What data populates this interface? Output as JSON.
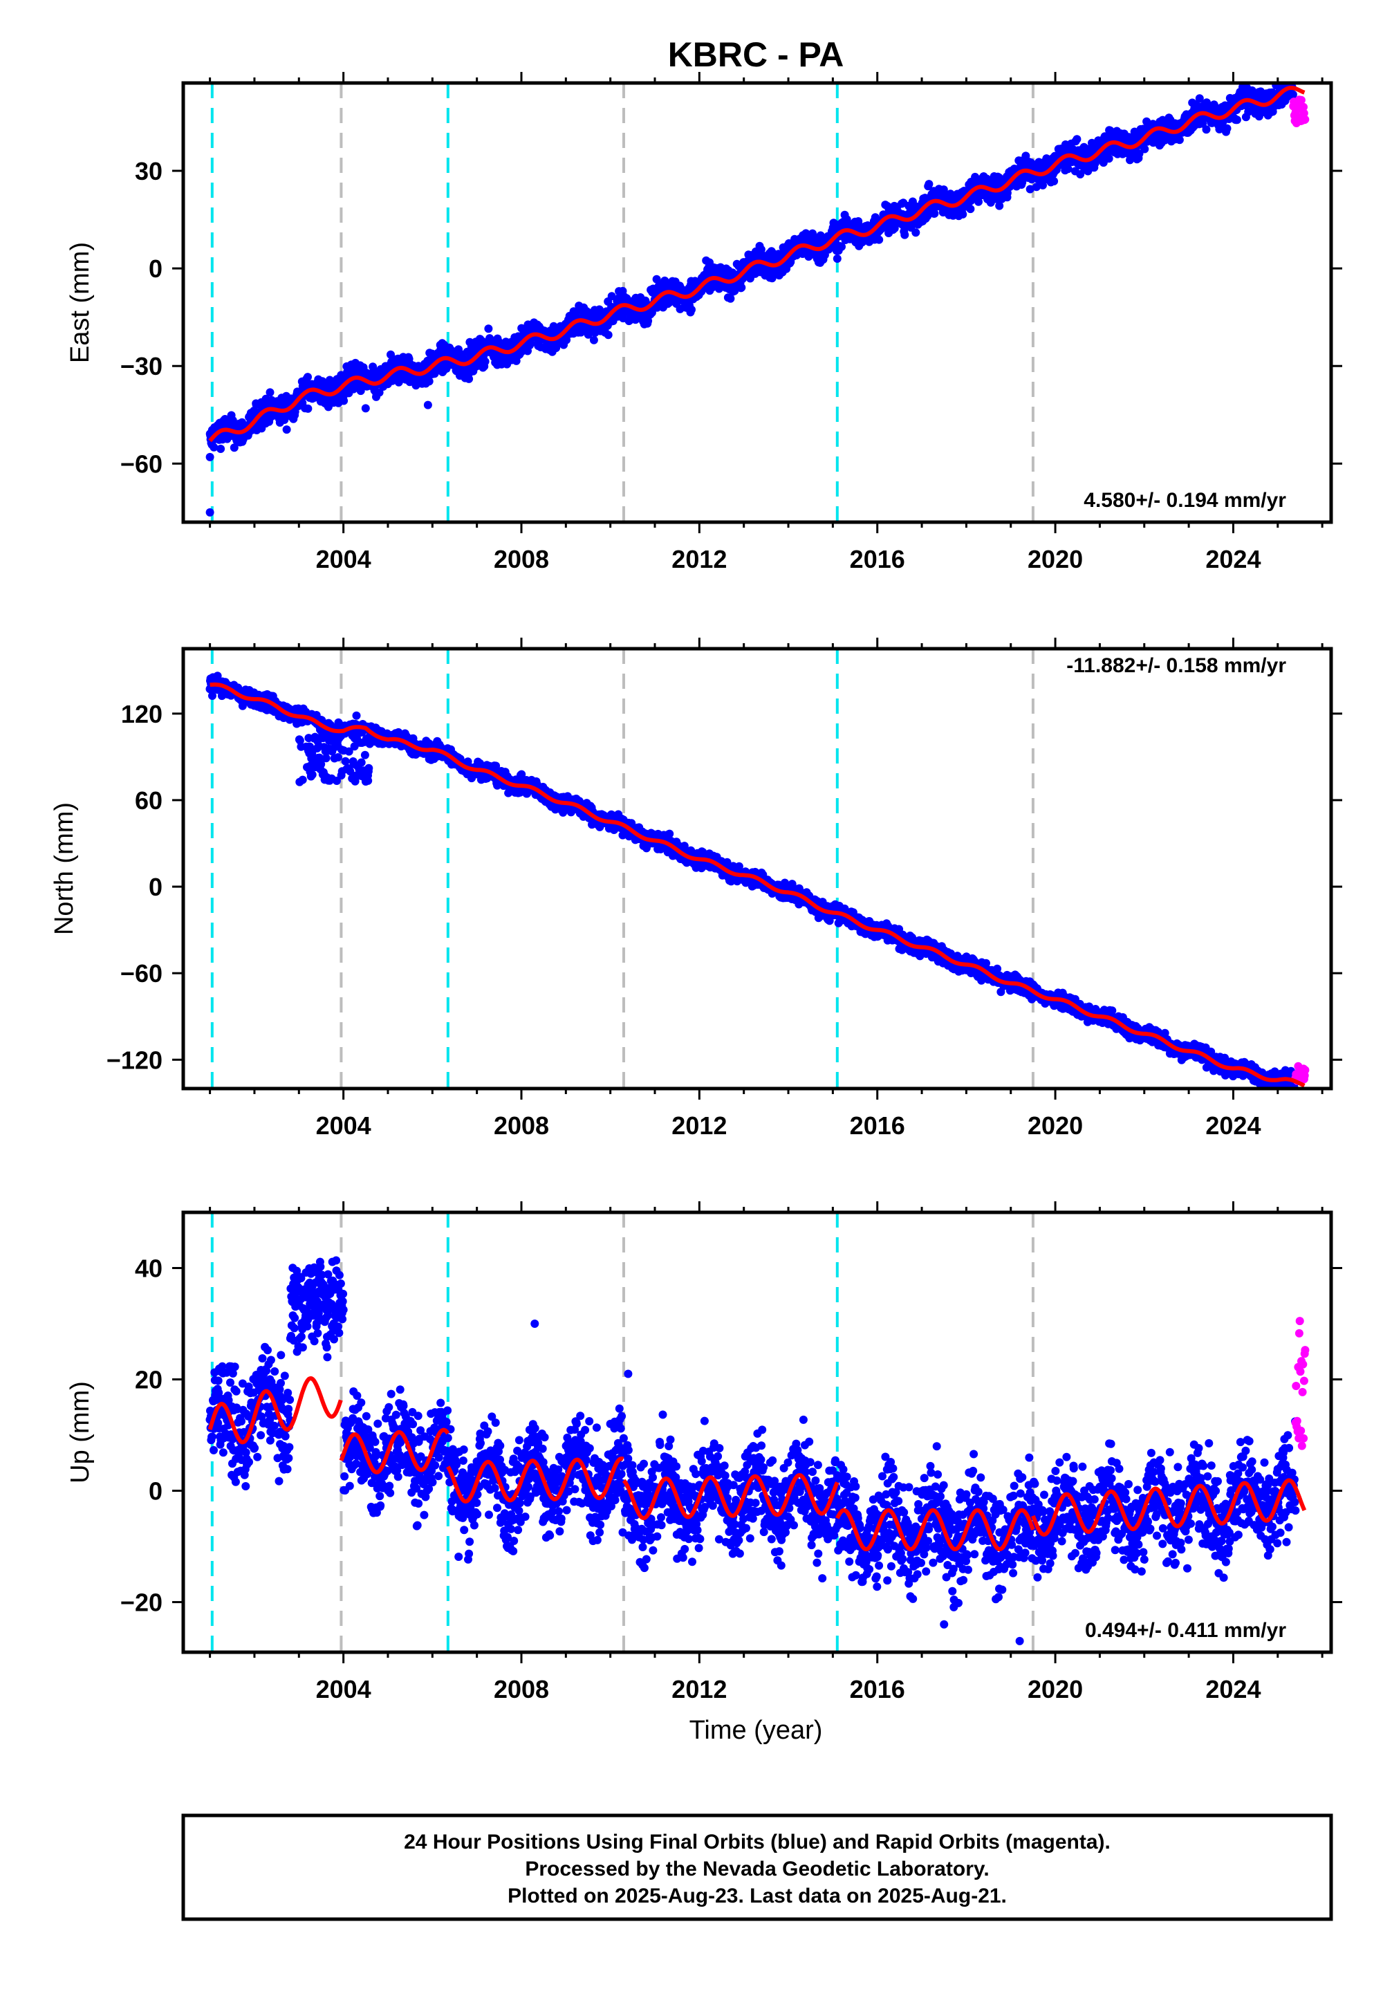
{
  "title": "KBRC - PA",
  "xlabel": "Time (year)",
  "colors": {
    "final": "#0000ff",
    "rapid": "#ff00ff",
    "model": "#ff0000",
    "equipment_change": "#00e5ee",
    "other_step": "#bdbdbd"
  },
  "footer": {
    "line1": "24 Hour Positions Using Final Orbits (blue) and Rapid Orbits (magenta).",
    "line2": "Processed by the Nevada Geodetic Laboratory.",
    "line3": "Plotted on 2025-Aug-23. Last data on 2025-Aug-21."
  },
  "chart_data": [
    {
      "type": "scatter",
      "component": "East",
      "ylabel": "East (mm)",
      "xlim": [
        2000.4,
        2026.2
      ],
      "ylim": [
        -78,
        57
      ],
      "xticks": [
        2004,
        2008,
        2012,
        2016,
        2020,
        2024
      ],
      "yticks": [
        -60,
        -30,
        0,
        30
      ],
      "rate_label": "4.580+/- 0.194 mm/yr",
      "rate_position": "bottom-right",
      "trend": {
        "t0": 2001.0,
        "y0": -51,
        "rate": 4.58
      },
      "model_series": [
        {
          "x": 2001.0,
          "y": -53
        },
        {
          "x": 2002.0,
          "y": -47
        },
        {
          "x": 2003.0,
          "y": -40
        },
        {
          "x": 2004.0,
          "y": -36
        },
        {
          "x": 2005.0,
          "y": -33
        },
        {
          "x": 2006.0,
          "y": -30
        },
        {
          "x": 2007.0,
          "y": -27
        },
        {
          "x": 2008.0,
          "y": -23
        },
        {
          "x": 2009.0,
          "y": -19
        },
        {
          "x": 2010.0,
          "y": -14
        },
        {
          "x": 2011.0,
          "y": -10
        },
        {
          "x": 2012.0,
          "y": -6
        },
        {
          "x": 2013.0,
          "y": -1
        },
        {
          "x": 2014.0,
          "y": 4
        },
        {
          "x": 2015.0,
          "y": 9
        },
        {
          "x": 2016.0,
          "y": 13
        },
        {
          "x": 2017.0,
          "y": 18
        },
        {
          "x": 2018.0,
          "y": 22
        },
        {
          "x": 2019.0,
          "y": 27
        },
        {
          "x": 2020.0,
          "y": 32
        },
        {
          "x": 2021.0,
          "y": 36
        },
        {
          "x": 2022.0,
          "y": 40
        },
        {
          "x": 2023.0,
          "y": 45
        },
        {
          "x": 2024.0,
          "y": 49
        },
        {
          "x": 2025.0,
          "y": 53
        },
        {
          "x": 2025.6,
          "y": 55
        }
      ],
      "scatter_amp": 3,
      "outliers": [
        {
          "x": 2001.0,
          "y": -75
        },
        {
          "x": 2001.0,
          "y": -58
        },
        {
          "x": 2005.9,
          "y": -42
        },
        {
          "x": 2004.5,
          "y": -43
        },
        {
          "x": 2015.1,
          "y": 3
        }
      ],
      "rapid": {
        "x0": 2025.35,
        "x1": 2025.62,
        "y_min": 44,
        "y_max": 52
      },
      "steps": [
        {
          "x": 2001.05,
          "kind": "equipment"
        },
        {
          "x": 2003.95,
          "kind": "other"
        },
        {
          "x": 2006.35,
          "kind": "equipment"
        },
        {
          "x": 2010.3,
          "kind": "other"
        },
        {
          "x": 2015.1,
          "kind": "equipment"
        },
        {
          "x": 2019.5,
          "kind": "other"
        }
      ]
    },
    {
      "type": "scatter",
      "component": "North",
      "ylabel": "North (mm)",
      "xlim": [
        2000.4,
        2026.2
      ],
      "ylim": [
        -140,
        165
      ],
      "xticks": [
        2004,
        2008,
        2012,
        2016,
        2020,
        2024
      ],
      "yticks": [
        -120,
        -60,
        0,
        60,
        120
      ],
      "rate_label": "-11.882+/- 0.158 mm/yr",
      "rate_position": "top-right",
      "model_series": [
        {
          "x": 2001.0,
          "y": 140
        },
        {
          "x": 2001.5,
          "y": 136
        },
        {
          "x": 2002.0,
          "y": 130
        },
        {
          "x": 2002.5,
          "y": 125
        },
        {
          "x": 2003.0,
          "y": 118
        },
        {
          "x": 2003.5,
          "y": 112
        },
        {
          "x": 2004.0,
          "y": 108
        },
        {
          "x": 2004.5,
          "y": 110
        },
        {
          "x": 2005.0,
          "y": 102
        },
        {
          "x": 2006.0,
          "y": 95
        },
        {
          "x": 2006.35,
          "y": 90
        },
        {
          "x": 2007.0,
          "y": 81
        },
        {
          "x": 2008.0,
          "y": 70
        },
        {
          "x": 2009.0,
          "y": 58
        },
        {
          "x": 2010.0,
          "y": 45
        },
        {
          "x": 2011.0,
          "y": 32
        },
        {
          "x": 2012.0,
          "y": 19
        },
        {
          "x": 2013.0,
          "y": 8
        },
        {
          "x": 2014.0,
          "y": -4
        },
        {
          "x": 2015.0,
          "y": -18
        },
        {
          "x": 2016.0,
          "y": -30
        },
        {
          "x": 2017.0,
          "y": -42
        },
        {
          "x": 2018.0,
          "y": -54
        },
        {
          "x": 2019.0,
          "y": -67
        },
        {
          "x": 2020.0,
          "y": -78
        },
        {
          "x": 2021.0,
          "y": -90
        },
        {
          "x": 2022.0,
          "y": -102
        },
        {
          "x": 2023.0,
          "y": -114
        },
        {
          "x": 2024.0,
          "y": -126
        },
        {
          "x": 2025.0,
          "y": -134
        },
        {
          "x": 2025.6,
          "y": -137
        }
      ],
      "scatter_amp": 4,
      "dip": {
        "x0": 2003.0,
        "x1": 2004.6,
        "y_low": 72,
        "y_high": 105
      },
      "rapid": {
        "x0": 2025.4,
        "x1": 2025.62,
        "y_min": -135,
        "y_max": -124
      },
      "steps": [
        {
          "x": 2001.05,
          "kind": "equipment"
        },
        {
          "x": 2003.95,
          "kind": "other"
        },
        {
          "x": 2006.35,
          "kind": "equipment"
        },
        {
          "x": 2010.3,
          "kind": "other"
        },
        {
          "x": 2015.1,
          "kind": "equipment"
        },
        {
          "x": 2019.5,
          "kind": "other"
        }
      ]
    },
    {
      "type": "scatter",
      "component": "Up",
      "ylabel": "Up (mm)",
      "xlim": [
        2000.4,
        2026.2
      ],
      "ylim": [
        -29,
        50
      ],
      "xticks": [
        2004,
        2008,
        2012,
        2016,
        2020,
        2024
      ],
      "yticks": [
        -20,
        0,
        20,
        40
      ],
      "rate_label": "0.494+/- 0.411 mm/yr",
      "rate_position": "bottom-right",
      "model_segments": [
        {
          "x0": 2001.0,
          "x1": 2003.95,
          "offset": 11,
          "amp": 4,
          "trend": 2.3
        },
        {
          "x0": 2003.95,
          "x1": 2006.35,
          "offset": 6.5,
          "amp": 3.5,
          "trend": 0.4
        },
        {
          "x0": 2006.35,
          "x1": 2010.3,
          "offset": 1.5,
          "amp": 3.5,
          "trend": 0.2
        },
        {
          "x0": 2010.3,
          "x1": 2015.1,
          "offset": -1.5,
          "amp": 3.5,
          "trend": 0.2
        },
        {
          "x0": 2015.1,
          "x1": 2019.5,
          "offset": -7,
          "amp": 3.5,
          "trend": 0.0
        },
        {
          "x0": 2019.5,
          "x1": 2025.6,
          "offset": -4.5,
          "amp": 3.5,
          "trend": 0.5
        }
      ],
      "scatter_amp": 6,
      "bump": {
        "x0": 2002.8,
        "x1": 2004.0,
        "y_center": 34,
        "spread": 9
      },
      "outliers": [
        {
          "x": 2008.3,
          "y": 30
        },
        {
          "x": 2010.4,
          "y": 21
        },
        {
          "x": 2017.5,
          "y": -24
        },
        {
          "x": 2019.2,
          "y": -27
        }
      ],
      "rapid": {
        "x0": 2025.4,
        "x1": 2025.62,
        "y_min": 8,
        "y_max": 31
      },
      "steps": [
        {
          "x": 2001.05,
          "kind": "equipment"
        },
        {
          "x": 2003.95,
          "kind": "other"
        },
        {
          "x": 2006.35,
          "kind": "equipment"
        },
        {
          "x": 2010.3,
          "kind": "other"
        },
        {
          "x": 2015.1,
          "kind": "equipment"
        },
        {
          "x": 2019.5,
          "kind": "other"
        }
      ]
    }
  ]
}
